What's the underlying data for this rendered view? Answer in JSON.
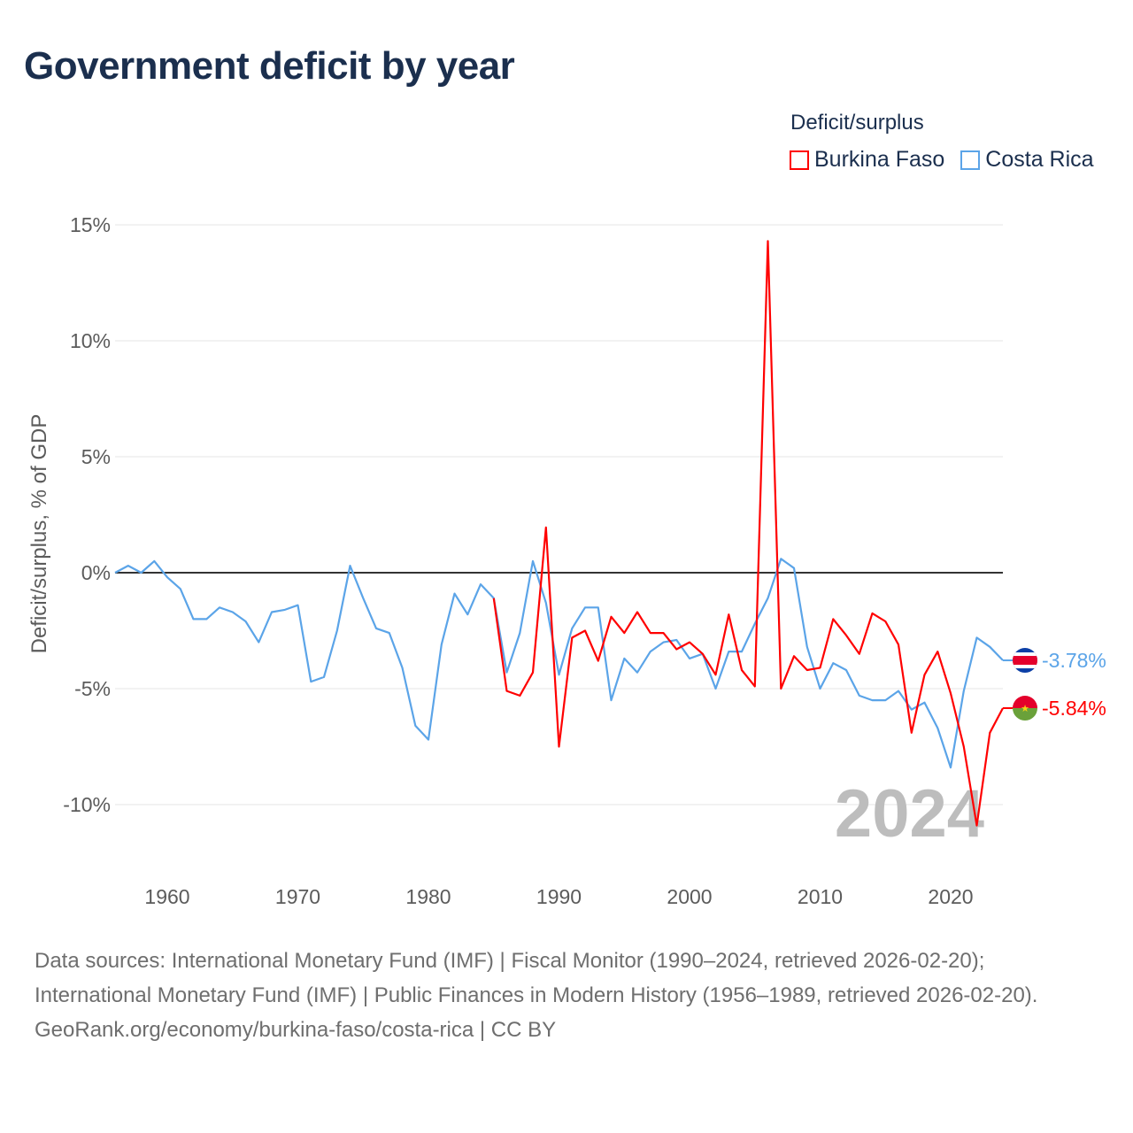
{
  "title": "Government deficit by year",
  "legend_title": "Deficit/surplus",
  "footer": {
    "sources": "Data sources: International Monetary Fund (IMF) | Fiscal Monitor (1990–2024, retrieved 2026-02-20); International Monetary Fund (IMF) | Public Finances in Modern History (1956–1989, retrieved 2026-02-20).",
    "credit": "GeoRank.org/economy/burkina-faso/costa-rica | CC BY"
  },
  "chart_data": {
    "type": "line",
    "title": "Government deficit by year",
    "ylabel": "Deficit/surplus, % of GDP",
    "xlabel": "",
    "xlim": [
      1956,
      2024
    ],
    "ylim": [
      -12.5,
      15.5
    ],
    "yticks": [
      15,
      10,
      5,
      0,
      -5,
      -10
    ],
    "ytick_labels": [
      "15%",
      "10%",
      "5%",
      "0%",
      "-5%",
      "-10%"
    ],
    "xticks": [
      1960,
      1970,
      1980,
      1990,
      2000,
      2010,
      2020
    ],
    "xtick_labels": [
      "1960",
      "1970",
      "1980",
      "1990",
      "2000",
      "2010",
      "2020"
    ],
    "year_watermark": "2024",
    "grid": true,
    "legend_position": "top-right",
    "series": [
      {
        "name": "Burkina Faso",
        "color": "#ff0000",
        "end_label": "-5.84%",
        "start_year": 1985,
        "values": [
          -1.1,
          -5.1,
          -5.3,
          -4.3,
          1.95,
          -7.5,
          -2.8,
          -2.5,
          -3.8,
          -1.9,
          -2.6,
          -1.7,
          -2.6,
          -2.6,
          -3.3,
          -3.0,
          -3.5,
          -4.4,
          -1.8,
          -4.2,
          -4.9,
          14.3,
          -5.0,
          -3.6,
          -4.2,
          -4.1,
          -2.0,
          -2.7,
          -3.5,
          -1.75,
          -2.1,
          -3.1,
          -6.9,
          -4.4,
          -3.4,
          -5.2,
          -7.5,
          -10.9,
          -6.9,
          -5.84
        ]
      },
      {
        "name": "Costa Rica",
        "color": "#5ba4e8",
        "end_label": "-3.78%",
        "start_year": 1956,
        "values": [
          0.0,
          0.3,
          0.0,
          0.5,
          -0.2,
          -0.7,
          -2.0,
          -2.0,
          -1.5,
          -1.7,
          -2.1,
          -3.0,
          -1.7,
          -1.6,
          -1.4,
          -4.7,
          -4.5,
          -2.5,
          0.3,
          -1.1,
          -2.4,
          -2.6,
          -4.1,
          -6.6,
          -7.2,
          -3.1,
          -0.9,
          -1.8,
          -0.5,
          -1.1,
          -4.3,
          -2.6,
          0.5,
          -1.3,
          -4.4,
          -2.4,
          -1.5,
          -1.5,
          -5.5,
          -3.7,
          -4.3,
          -3.4,
          -3.0,
          -2.9,
          -3.7,
          -3.5,
          -5.0,
          -3.4,
          -3.4,
          -2.2,
          -1.1,
          0.6,
          0.2,
          -3.2,
          -5.0,
          -3.9,
          -4.2,
          -5.3,
          -5.5,
          -5.5,
          -5.1,
          -5.9,
          -5.6,
          -6.7,
          -8.4,
          -5.1,
          -2.8,
          -3.2,
          -3.78
        ]
      }
    ]
  }
}
